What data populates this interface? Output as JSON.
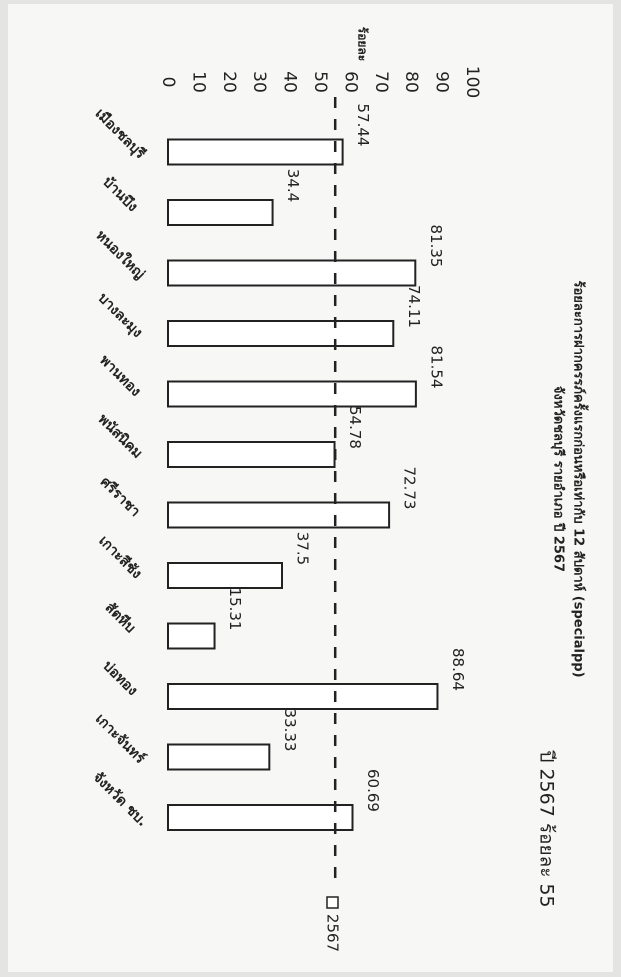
{
  "chart_data": {
    "type": "bar",
    "orientation": "vertical",
    "title": "ร้อยละการฝากครรภ์ครั้งแรกก่อนหรือเท่ากับ 12 สัปดาห์ (specialpp)",
    "subtitle": "จังหวัดชลบุรี รายอำเภอ ปี 2567",
    "ylabel": "ร้อยละ",
    "xlabel": "",
    "ylim": [
      0,
      100
    ],
    "yticks": [
      "0",
      "10",
      "20",
      "30",
      "40",
      "50",
      "60",
      "70",
      "80",
      "90",
      "100"
    ],
    "categories": [
      "เมืองชลบุรี",
      "บ้านบึง",
      "หนองใหญ่",
      "บางละมุง",
      "พานทอง",
      "พนัสนิคม",
      "ศรีราชา",
      "เกาะสีชัง",
      "สัตหีบ",
      "บ่อทอง",
      "เกาะจันทร์",
      "จังหวัด ชบ."
    ],
    "series": [
      {
        "name": "2567",
        "values": [
          57.44,
          34.4,
          81.35,
          74.11,
          81.54,
          54.78,
          72.73,
          37.5,
          15.31,
          88.64,
          33.33,
          60.69
        ],
        "labels": [
          "57.44",
          "34.4",
          "81.35",
          "74.11",
          "81.54",
          "54.78",
          "72.73",
          "37.5",
          "15.31",
          "88.64",
          "33.33",
          "60.69"
        ]
      }
    ],
    "target": {
      "value": 55,
      "style": "dashed",
      "label": "ปี 2567 ร้อยละ 55"
    },
    "legend": {
      "position": "bottom"
    },
    "grid": false,
    "colors": {
      "bar_fill": "#ffffff",
      "bar_stroke": "#222222",
      "text": "#222222"
    }
  }
}
